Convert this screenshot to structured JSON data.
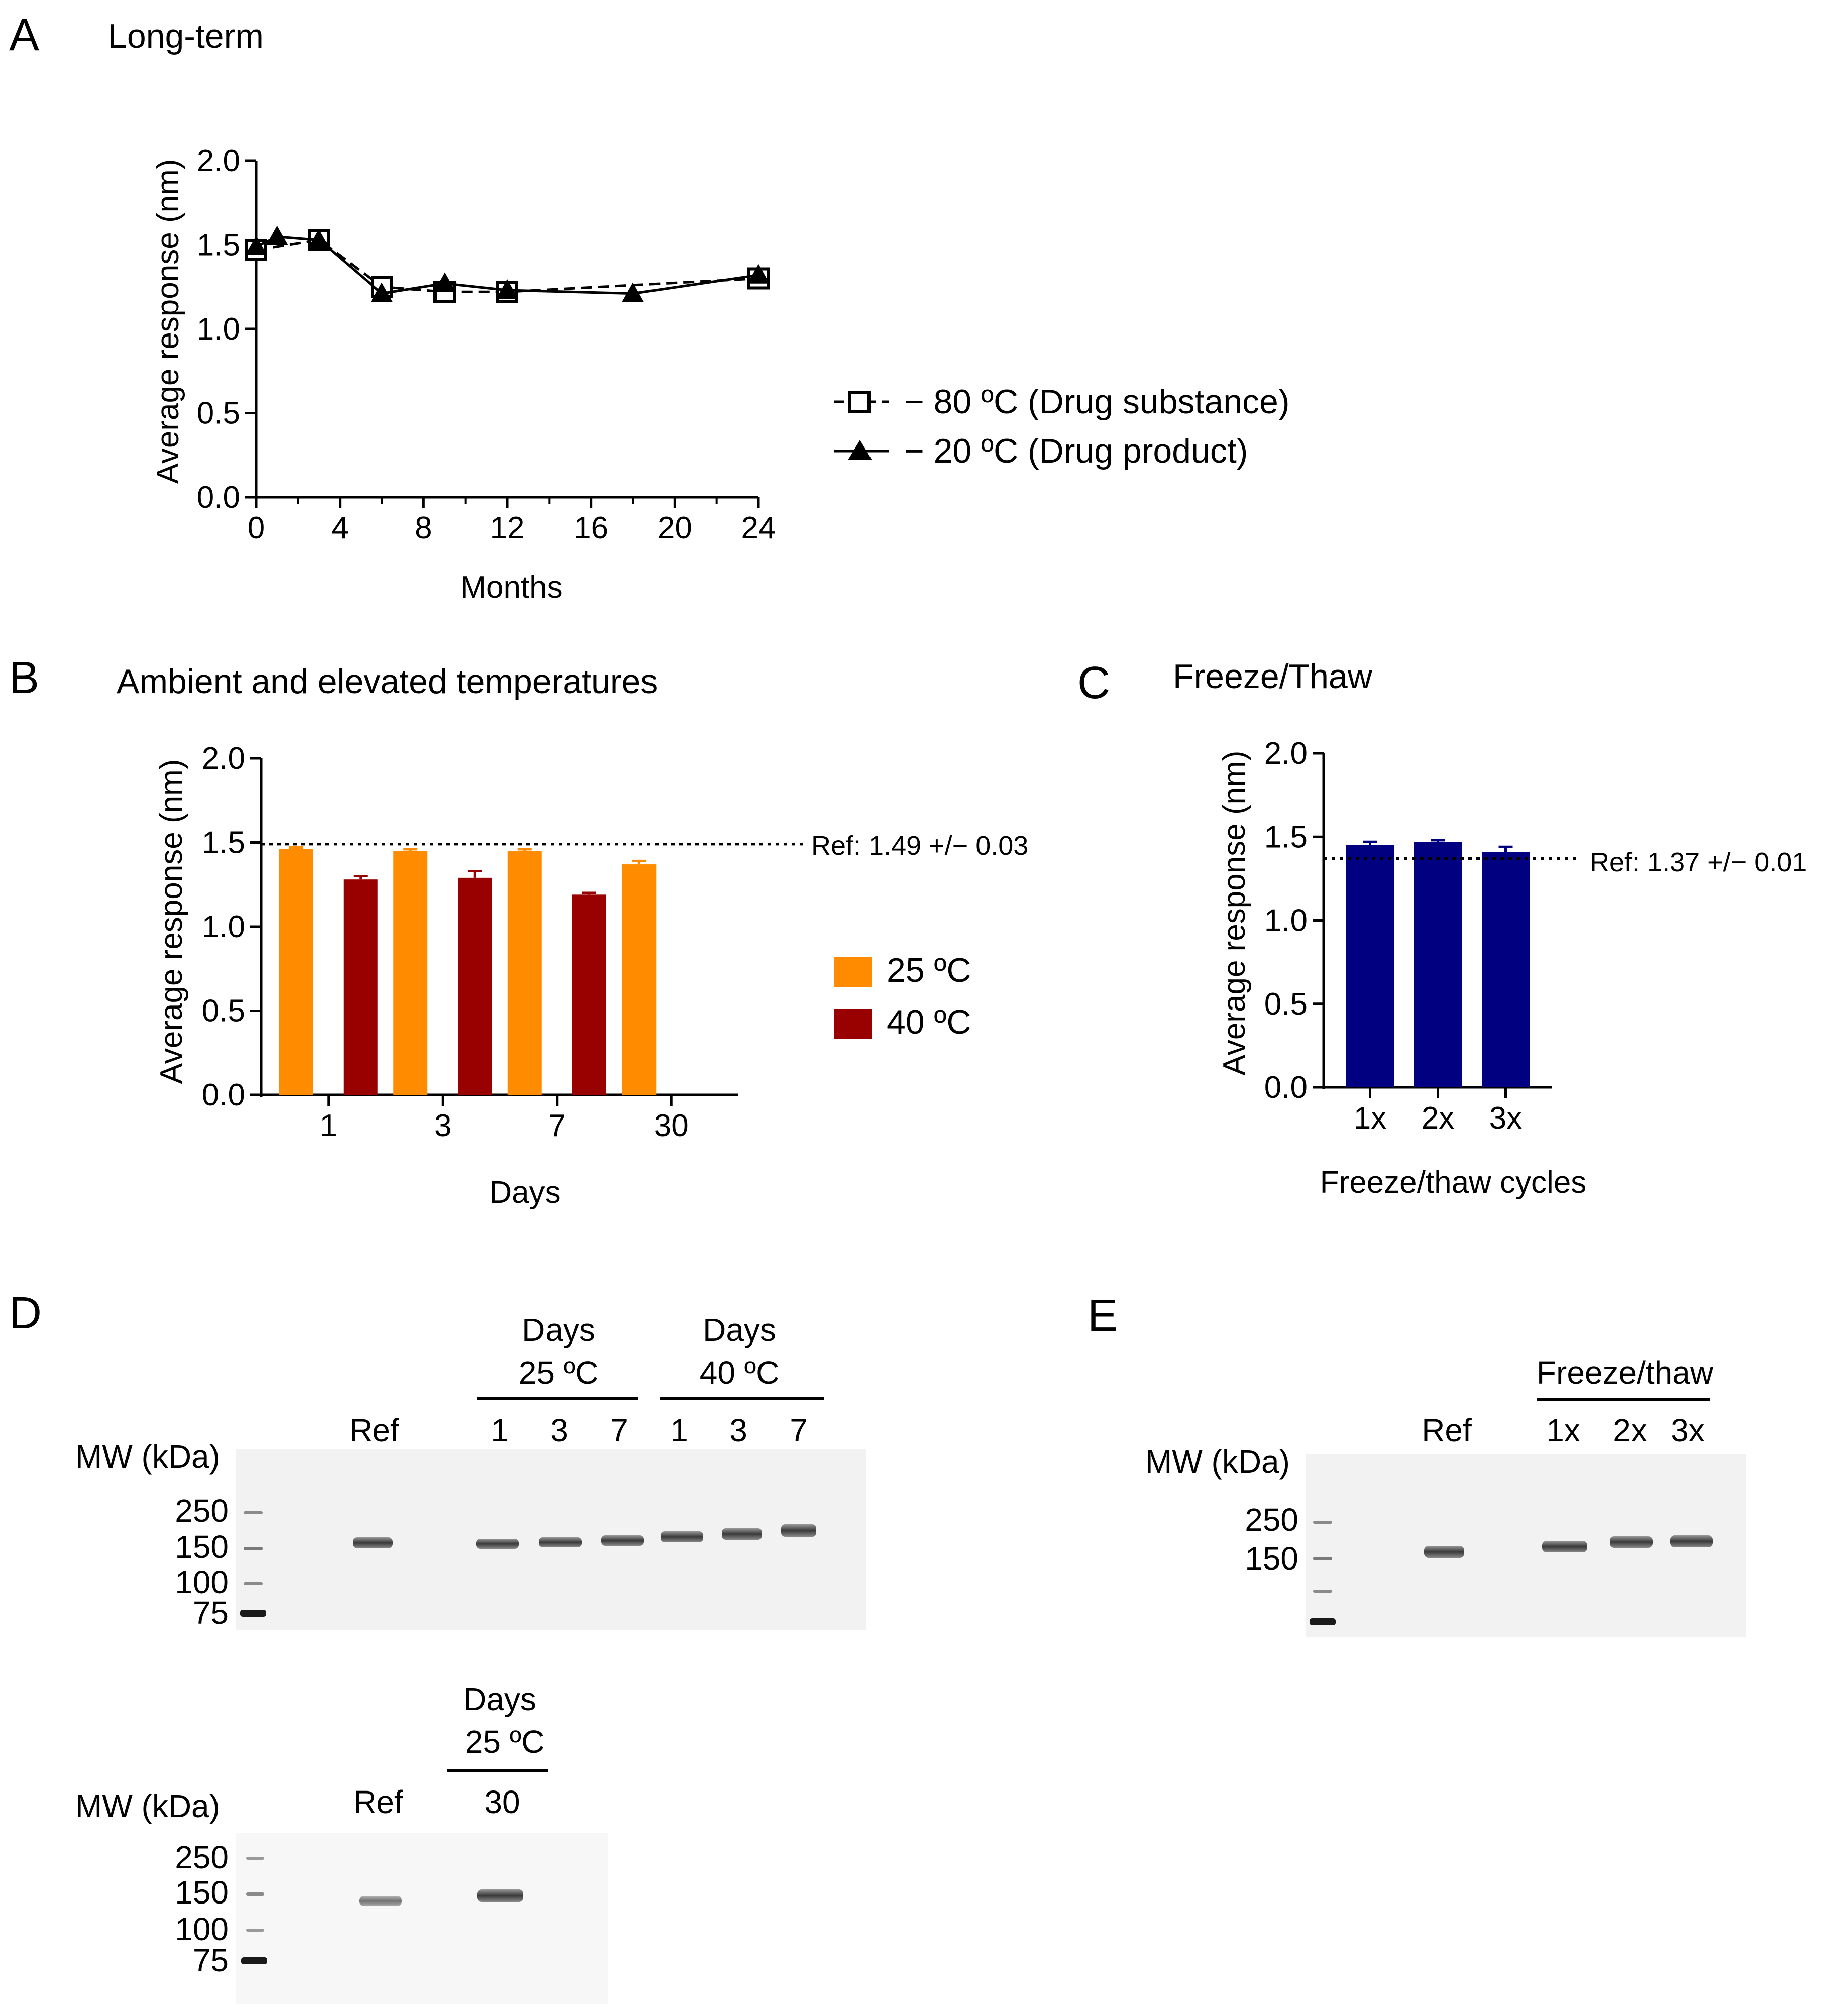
{
  "panels": {
    "A": {
      "letter": "A",
      "title": "Long-term",
      "chart_data": {
        "type": "line",
        "xlabel": "Months",
        "ylabel": "Average response (nm)",
        "xlim": [
          0,
          24
        ],
        "ylim": [
          0,
          2.0
        ],
        "xticks": [
          "0",
          "4",
          "8",
          "12",
          "16",
          "20",
          "24"
        ],
        "yticks": [
          "0.0",
          "0.5",
          "1.0",
          "1.5",
          "2.0"
        ],
        "legend_placement": "right",
        "series": [
          {
            "name": "− 80 ºC (Drug substance)",
            "marker": "open-square",
            "line": "dashed",
            "x": [
              0,
              3,
              6,
              9,
              12,
              24
            ],
            "y": [
              1.47,
              1.53,
              1.25,
              1.22,
              1.22,
              1.3
            ]
          },
          {
            "name": "− 20 ºC (Drug product)",
            "marker": "filled-triangle",
            "line": "solid",
            "x": [
              0,
              1,
              3,
              6,
              9,
              12,
              18,
              24
            ],
            "y": [
              1.49,
              1.55,
              1.53,
              1.21,
              1.27,
              1.23,
              1.21,
              1.32
            ]
          }
        ]
      }
    },
    "B": {
      "letter": "B",
      "title": "Ambient and elevated temperatures",
      "ref_label": "Ref: 1.49 +/− 0.03",
      "chart_data": {
        "type": "bar",
        "xlabel": "Days",
        "ylabel": "Average response (nm)",
        "ylim": [
          0,
          2.0
        ],
        "yticks": [
          "0.0",
          "0.5",
          "1.0",
          "1.5",
          "2.0"
        ],
        "categories": [
          "1",
          "3",
          "7",
          "30"
        ],
        "reference_line": 1.49,
        "legend_placement": "right",
        "series": [
          {
            "name": "25 ºC",
            "color": "#ff8c00",
            "values": [
              1.46,
              1.45,
              1.45,
              1.37
            ],
            "errors": [
              0.01,
              0.01,
              0.01,
              0.02
            ]
          },
          {
            "name": "40 ºC",
            "color": "#990000",
            "values": [
              1.28,
              1.29,
              1.19,
              null
            ],
            "errors": [
              0.02,
              0.04,
              0.01,
              null
            ]
          }
        ]
      }
    },
    "C": {
      "letter": "C",
      "title": "Freeze/Thaw",
      "ref_label": "Ref: 1.37 +/− 0.01",
      "chart_data": {
        "type": "bar",
        "xlabel": "Freeze/thaw cycles",
        "ylabel": "Average response (nm)",
        "ylim": [
          0,
          2.0
        ],
        "yticks": [
          "0.0",
          "0.5",
          "1.0",
          "1.5",
          "2.0"
        ],
        "categories": [
          "1x",
          "2x",
          "3x"
        ],
        "reference_line": 1.37,
        "series": [
          {
            "color": "#000080",
            "values": [
              1.45,
              1.47,
              1.41
            ],
            "errors": [
              0.02,
              0.01,
              0.03
            ]
          }
        ]
      }
    },
    "D": {
      "letter": "D",
      "mw_label": "MW (kDa)",
      "markers": [
        "250",
        "150",
        "100",
        "75"
      ],
      "ref": "Ref",
      "group1_title": "Days",
      "group1_temp": "25 ºC",
      "group2_title": "Days",
      "group2_temp": "40 ºC",
      "lanes": [
        "1",
        "3",
        "7",
        "1",
        "3",
        "7"
      ],
      "lower_mw_label": "MW (kDa)",
      "lower_markers": [
        "250",
        "150",
        "100",
        "75"
      ],
      "lower_ref": "Ref",
      "lower_group_title": "Days",
      "lower_group_temp": "25 ºC",
      "lower_lane": "30"
    },
    "E": {
      "letter": "E",
      "mw_label": "MW (kDa)",
      "markers": [
        "250",
        "150"
      ],
      "ref": "Ref",
      "group_title": "Freeze/thaw",
      "lanes": [
        "1x",
        "2x",
        "3x"
      ]
    }
  }
}
